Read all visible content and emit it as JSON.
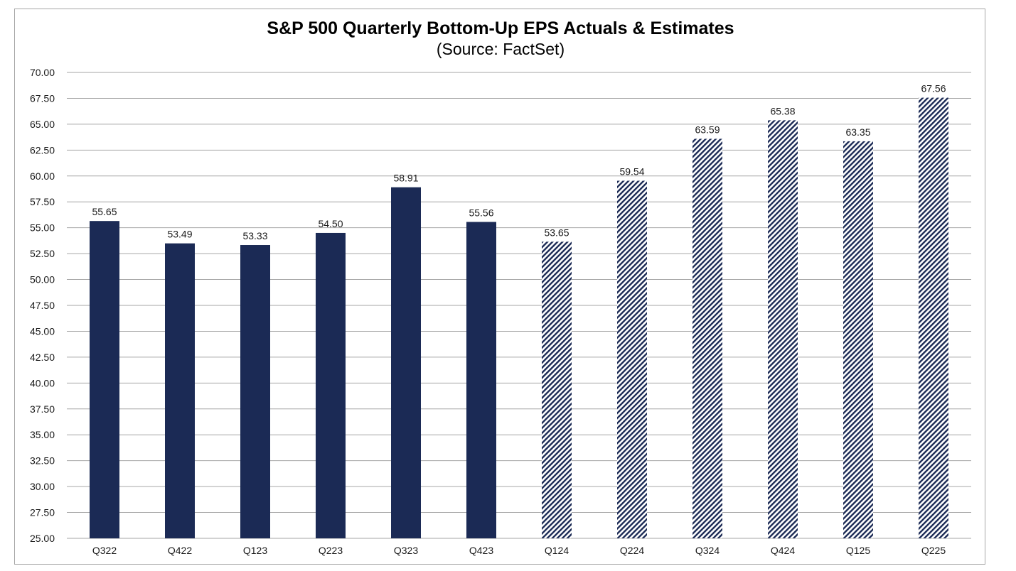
{
  "chart_data": {
    "type": "bar",
    "title": "S&P 500 Quarterly Bottom-Up EPS Actuals & Estimates",
    "subtitle": "(Source: FactSet)",
    "categories": [
      "Q322",
      "Q422",
      "Q123",
      "Q223",
      "Q323",
      "Q423",
      "Q124",
      "Q224",
      "Q324",
      "Q424",
      "Q125",
      "Q225"
    ],
    "values": [
      55.65,
      53.49,
      53.33,
      54.5,
      58.91,
      55.56,
      53.65,
      59.54,
      63.59,
      65.38,
      63.35,
      67.56
    ],
    "value_labels": [
      "55.65",
      "53.49",
      "53.33",
      "54.50",
      "58.91",
      "55.56",
      "53.65",
      "59.54",
      "63.59",
      "65.38",
      "63.35",
      "67.56"
    ],
    "kind": [
      "actual",
      "actual",
      "actual",
      "actual",
      "actual",
      "actual",
      "estimate",
      "estimate",
      "estimate",
      "estimate",
      "estimate",
      "estimate"
    ],
    "ylim": [
      25,
      70
    ],
    "yticks": [
      "70.00",
      "67.50",
      "65.00",
      "62.50",
      "60.00",
      "57.50",
      "55.00",
      "52.50",
      "50.00",
      "47.50",
      "45.00",
      "42.50",
      "40.00",
      "37.50",
      "35.00",
      "32.50",
      "30.00",
      "27.50",
      "25.00"
    ],
    "ytick_values": [
      70,
      67.5,
      65,
      62.5,
      60,
      57.5,
      55,
      52.5,
      50,
      47.5,
      45,
      42.5,
      40,
      37.5,
      35,
      32.5,
      30,
      27.5,
      25
    ],
    "xlabel": "",
    "ylabel": "",
    "grid": true,
    "legend": "none",
    "colors": {
      "actual_fill": "#1b2a55",
      "estimate_stripe": "#1b2a55",
      "estimate_background": "#ffffff",
      "gridline": "#a6a6a6"
    }
  }
}
